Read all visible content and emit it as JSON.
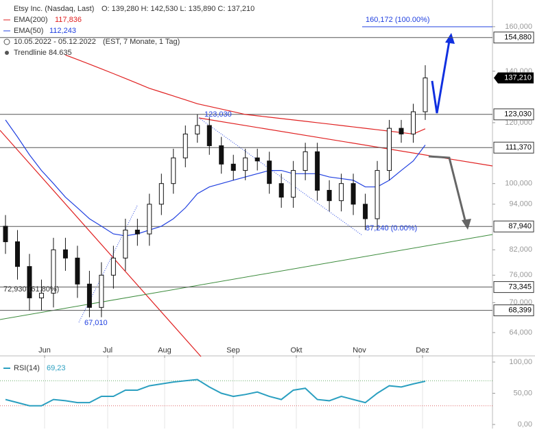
{
  "chart_data": {
    "type": "candlestick",
    "title": "Etsy Inc. (Nasdaq, Last)",
    "ohlc_text": "O: 139,280  H: 142,530  L: 135,890  C: 137,210",
    "range_text": "10.05.2022 - 05.12.2022",
    "range_note": "(EST, 7 Monate, 1 Tag)",
    "trend_text": "Trendlinie  84.635",
    "months": [
      "Jun",
      "Jul",
      "Aug",
      "Sep",
      "Okt",
      "Nov",
      "Dez"
    ],
    "open": [
      88,
      84,
      78,
      71,
      72,
      82,
      80,
      74,
      69,
      76,
      80,
      87,
      86,
      94,
      100,
      108,
      116,
      119,
      112,
      106,
      104,
      108,
      107,
      100,
      96,
      104,
      110,
      98,
      95,
      100,
      94,
      90,
      104,
      118,
      116,
      124
    ],
    "high": [
      91,
      87,
      81,
      75,
      85,
      85,
      83,
      77,
      79,
      83,
      90,
      90,
      97,
      103,
      111,
      119,
      123.03,
      122,
      115,
      109,
      111,
      111,
      110,
      103,
      107,
      113,
      113,
      101,
      103,
      103,
      97,
      107,
      121,
      121,
      127,
      142.53
    ],
    "low": [
      81,
      75,
      68.4,
      68.4,
      69,
      77,
      71,
      67,
      67.01,
      73,
      77,
      83,
      83,
      91,
      97,
      105,
      113,
      109,
      103,
      101,
      101,
      104,
      97,
      93,
      93,
      101,
      95,
      92,
      92,
      91,
      87,
      87,
      101,
      113,
      113,
      121
    ],
    "close": [
      84,
      78,
      71,
      72,
      82,
      80,
      74,
      69,
      76,
      80,
      87,
      86,
      94,
      100,
      108,
      116,
      119,
      112,
      106,
      104,
      108,
      107,
      100,
      96,
      104,
      110,
      98,
      95,
      100,
      94,
      90,
      104,
      118,
      116,
      124,
      137.21
    ],
    "series": [
      {
        "name": "EMA(200)",
        "value_label": "117,836",
        "color": "#e02020",
        "values": [
          null,
          null,
          null,
          null,
          null,
          147,
          145,
          143,
          141,
          139,
          137,
          135,
          133,
          131.5,
          130,
          128.5,
          127,
          126,
          125,
          124,
          123,
          122.5,
          122,
          121.5,
          121,
          120.5,
          120,
          119.5,
          119,
          118.5,
          118,
          117.5,
          117,
          116.5,
          116,
          117.84
        ]
      },
      {
        "name": "EMA(50)",
        "value_label": "112,243",
        "color": "#2040e0",
        "values": [
          121,
          115,
          109,
          104,
          100,
          96,
          93,
          90,
          88,
          86,
          85.5,
          86,
          87,
          88,
          90,
          93,
          97,
          99,
          100,
          101,
          102,
          103,
          104,
          104,
          103,
          103,
          103,
          102,
          101.5,
          101,
          99,
          99,
          101,
          104,
          107,
          112.24
        ]
      }
    ],
    "log_scale": true,
    "ylim": [
      59.8,
      173.3
    ],
    "yticks": [
      {
        "value": 160,
        "label": "160,000"
      },
      {
        "value": 140,
        "label": "140,000"
      },
      {
        "value": 120,
        "label": "120,000"
      },
      {
        "value": 100,
        "label": "100,000"
      },
      {
        "value": 94,
        "label": "94,000"
      },
      {
        "value": 82,
        "label": "82,000"
      },
      {
        "value": 76,
        "label": "76,000"
      },
      {
        "value": 70,
        "label": "70,000"
      },
      {
        "value": 64,
        "label": "64,000"
      }
    ],
    "levels": [
      {
        "value": 154.88,
        "label": "154,880",
        "color": "#555"
      },
      {
        "value": 123.03,
        "label": "123,030",
        "color": "#555"
      },
      {
        "value": 111.37,
        "label": "111,370",
        "color": "#555"
      },
      {
        "value": 87.94,
        "label": "87,940",
        "color": "#555"
      },
      {
        "value": 73.345,
        "label": "73,345",
        "color": "#555"
      },
      {
        "value": 68.399,
        "label": "68,399",
        "color": "#555"
      }
    ],
    "last_price": {
      "value": 137.21,
      "label": "137,210"
    },
    "annotations": [
      "160,172 (100.00%)",
      "123,030",
      "87,240 (0.00%)",
      "72,930 (61.80%)",
      "67,010"
    ],
    "rsi": {
      "name": "RSI(14)",
      "value_label": "69,23",
      "color": "#2a9fc0",
      "values": [
        40,
        35,
        30,
        30,
        40,
        38,
        35,
        35,
        45,
        45,
        55,
        55,
        62,
        65,
        68,
        70,
        72,
        60,
        50,
        45,
        48,
        52,
        45,
        40,
        55,
        58,
        40,
        38,
        45,
        40,
        35,
        50,
        62,
        60,
        65,
        69.23
      ],
      "ylim": [
        0,
        100
      ],
      "yticks": [
        {
          "value": 100,
          "label": "100,00"
        },
        {
          "value": 50,
          "label": "50,00"
        },
        {
          "value": 0,
          "label": "0,00"
        }
      ],
      "levels": [
        70,
        30
      ]
    }
  }
}
